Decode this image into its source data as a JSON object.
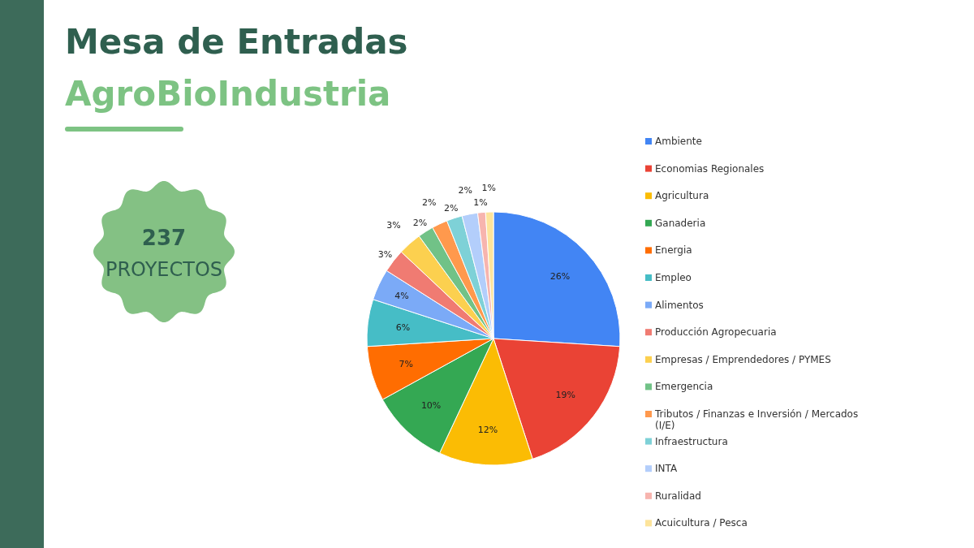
{
  "chart_data": {
    "type": "pie",
    "title": "Mesa de Entradas",
    "subtitle": "AgroBioIndustria",
    "annotations": [
      "237",
      "PROYECTOS"
    ],
    "categories": [
      "Ambiente",
      "Economias Regionales",
      "Agricultura",
      "Ganaderia",
      "Energia",
      "Empleo",
      "Alimentos",
      "Producción Agropecuaria",
      "Empresas / Emprendedores / PYMES",
      "Emergencia",
      "Tributos / Finanzas e Inversión / Mercados (I/E)",
      "Infraestructura",
      "INTA",
      "Ruralidad",
      "Acuicultura / Pesca"
    ],
    "values": [
      26,
      19,
      12,
      10,
      7,
      6,
      4,
      3,
      3,
      2,
      2,
      2,
      2,
      1,
      1
    ],
    "colors": [
      "#4285f4",
      "#ea4335",
      "#fbbc04",
      "#34a853",
      "#ff6d01",
      "#46bdc6",
      "#7baaf7",
      "#f07b72",
      "#fcd04f",
      "#71c287",
      "#ff994d",
      "#7ed1d7",
      "#b3cefb",
      "#f7b4ae",
      "#fde49b"
    ],
    "value_labels": [
      "26%",
      "19%",
      "12%",
      "10%",
      "7%",
      "6%",
      "4%",
      "3%",
      "3%",
      "2%",
      "2%",
      "2%",
      "2%",
      "1%",
      "1%"
    ],
    "legend": "right"
  }
}
